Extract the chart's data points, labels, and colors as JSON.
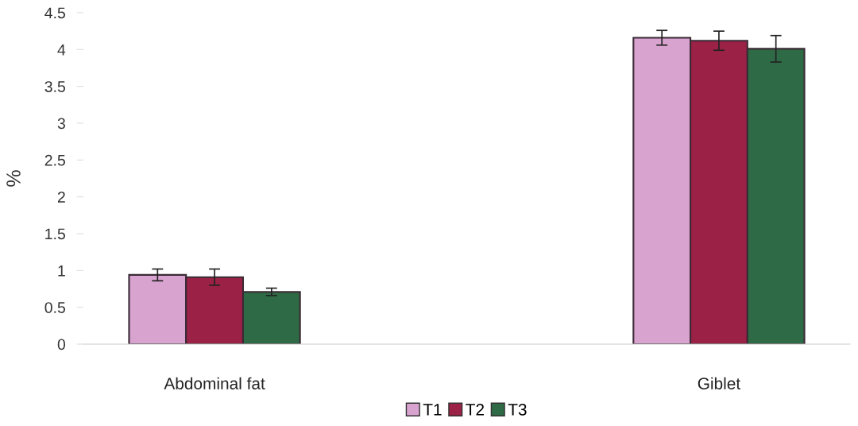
{
  "chart_data": {
    "type": "bar",
    "ylabel": "%",
    "categories": [
      "Abdominal fat",
      "Giblet"
    ],
    "series": [
      {
        "name": "T1",
        "color": "#d9a3cf",
        "values": [
          0.94,
          4.16
        ],
        "errors": [
          0.08,
          0.1
        ]
      },
      {
        "name": "T2",
        "color": "#9b2146",
        "values": [
          0.91,
          4.12
        ],
        "errors": [
          0.11,
          0.13
        ]
      },
      {
        "name": "T3",
        "color": "#2e6a45",
        "values": [
          0.71,
          4.01
        ],
        "errors": [
          0.05,
          0.18
        ]
      }
    ],
    "ylim": [
      0,
      4.5
    ],
    "yticks": [
      0,
      0.5,
      1,
      1.5,
      2,
      2.5,
      3,
      3.5,
      4,
      4.5
    ],
    "grid": false,
    "legend": "bottom"
  }
}
